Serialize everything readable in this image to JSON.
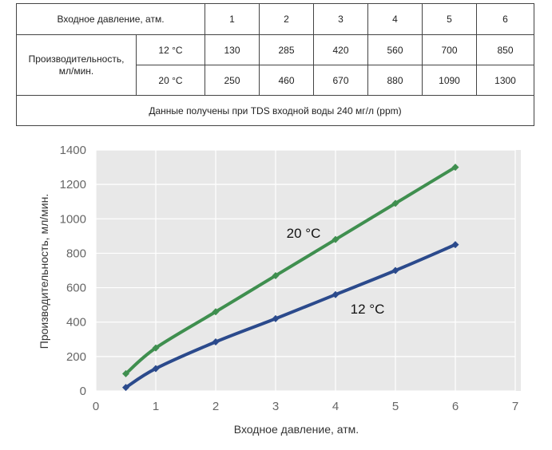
{
  "table": {
    "header_label": "Входное давление, атм.",
    "pressures": [
      "1",
      "2",
      "3",
      "4",
      "5",
      "6"
    ],
    "row_label_line1": "Производительность,",
    "row_label_line2": "мл/мин.",
    "rows": [
      {
        "temp": "12 °C",
        "values": [
          "130",
          "285",
          "420",
          "560",
          "700",
          "850"
        ]
      },
      {
        "temp": "20 °C",
        "values": [
          "250",
          "460",
          "670",
          "880",
          "1090",
          "1300"
        ]
      }
    ],
    "note": "Данные получены при TDS входной воды 240 мг/л (ppm)"
  },
  "chart_data": {
    "type": "line",
    "xlabel": "Входное давление, атм.",
    "ylabel": "Производительность, мл/мин.",
    "xlim": [
      0,
      7
    ],
    "ylim": [
      0,
      1400
    ],
    "xticks": [
      "0",
      "1",
      "2",
      "3",
      "4",
      "5",
      "6",
      "7"
    ],
    "yticks": [
      "0",
      "200",
      "400",
      "600",
      "800",
      "1000",
      "1200",
      "1400"
    ],
    "grid": true,
    "series": [
      {
        "name": "20 °C",
        "color": "#3f8f4f",
        "x": [
          0.5,
          1,
          2,
          3,
          4,
          5,
          6
        ],
        "y": [
          100,
          250,
          460,
          670,
          880,
          1090,
          1300
        ]
      },
      {
        "name": "12 °C",
        "color": "#2b4a8c",
        "x": [
          0.5,
          1,
          2,
          3,
          4,
          5,
          6
        ],
        "y": [
          20,
          130,
          285,
          420,
          560,
          700,
          850
        ]
      }
    ]
  }
}
